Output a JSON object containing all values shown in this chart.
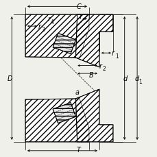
{
  "bg_color": "#f0f0eb",
  "ec": "#000000",
  "lw": 0.8,
  "figsize": [
    2.3,
    2.3
  ],
  "dpi": 100,
  "labels": {
    "C": [
      0.5,
      0.955,
      7.5
    ],
    "r4": [
      0.31,
      0.87,
      6.5
    ],
    "r3": [
      0.268,
      0.82,
      6.5
    ],
    "r1": [
      0.72,
      0.64,
      6.5
    ],
    "r2": [
      0.64,
      0.565,
      6.5
    ],
    "B": [
      0.59,
      0.52,
      6.5
    ],
    "a": [
      0.5,
      0.42,
      6.5
    ],
    "D": [
      0.06,
      0.5,
      7.5
    ],
    "d": [
      0.8,
      0.5,
      7.5
    ],
    "d1": [
      0.88,
      0.5,
      7.5
    ],
    "T": [
      0.5,
      0.048,
      7.5
    ]
  }
}
